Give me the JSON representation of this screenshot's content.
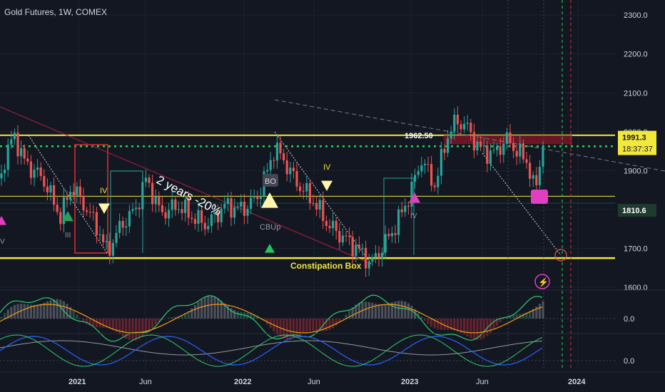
{
  "header": {
    "title": "Gold Futures, 1W, COMEX"
  },
  "colors": {
    "background": "#131722",
    "up": "#26a69a",
    "down": "#ef5350",
    "yellow": "#f2e83c",
    "green_dots": "#2ed14a",
    "pink": "#e040c0"
  },
  "chart_data": {
    "type": "candlestick",
    "title": "Gold Futures, 1W, COMEX",
    "ylim": [
      1580,
      2330
    ],
    "y_ticks": [
      "2300.0",
      "2200.0",
      "2100.0",
      "2000.0",
      "1900.0",
      "1800.0",
      "1700.0",
      "1600.0"
    ],
    "x_ticks": [
      "2021",
      "Jun",
      "2022",
      "Jun",
      "2023",
      "Jun",
      "2024"
    ],
    "price_labels": [
      {
        "value": 1991.3,
        "text": "1991.3",
        "countdown": "18:37:37"
      },
      {
        "value": 1810.6,
        "text": "1810.6"
      }
    ],
    "levels": [
      {
        "name": "constipation-box-top",
        "value": 1991
      },
      {
        "name": "constipation-box-bottom",
        "value": 1675
      },
      {
        "name": "green-dotted-level",
        "value": 1962.5
      },
      {
        "name": "thin-yellow-line",
        "value": 1834
      }
    ],
    "annotations": {
      "two_years": "2 years  -20%",
      "constipation": "Constipation Box",
      "level_text": "1962.50",
      "bo": "BO",
      "cbup": "CBUp",
      "iv1": "IV",
      "iv2": "IV",
      "iii": "III",
      "v": "V",
      "iv3": "IV",
      "lightning": "⚡"
    },
    "osc1": {
      "zero_label": "0.0"
    },
    "osc2": {
      "zero_label": "0.0"
    }
  }
}
